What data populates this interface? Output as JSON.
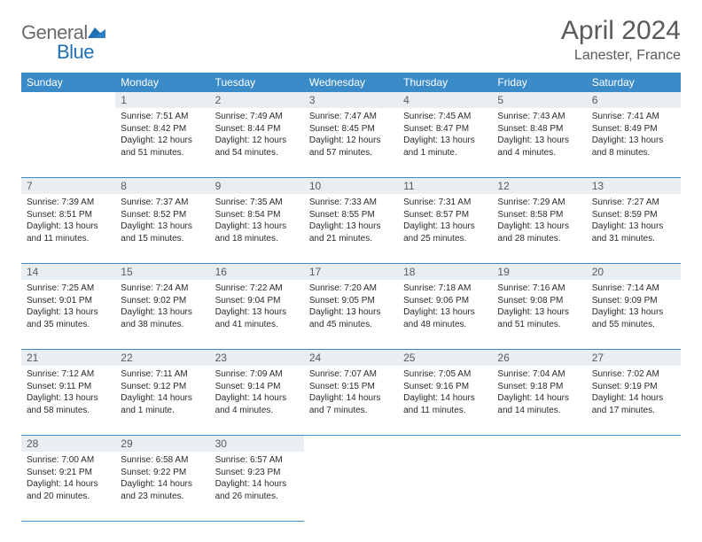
{
  "brand": {
    "general": "General",
    "blue": "Blue"
  },
  "title": "April 2024",
  "location": "Lanester, France",
  "colors": {
    "header_bg": "#3b8bc9",
    "header_fg": "#ffffff",
    "daynum_bg": "#e8eef2",
    "text": "#2b2b2b",
    "muted": "#5a5a5a",
    "rule": "#3b8bc9"
  },
  "weekdays": [
    "Sunday",
    "Monday",
    "Tuesday",
    "Wednesday",
    "Thursday",
    "Friday",
    "Saturday"
  ],
  "weeks": [
    [
      null,
      {
        "n": "1",
        "sunrise": "Sunrise: 7:51 AM",
        "sunset": "Sunset: 8:42 PM",
        "day1": "Daylight: 12 hours",
        "day2": "and 51 minutes."
      },
      {
        "n": "2",
        "sunrise": "Sunrise: 7:49 AM",
        "sunset": "Sunset: 8:44 PM",
        "day1": "Daylight: 12 hours",
        "day2": "and 54 minutes."
      },
      {
        "n": "3",
        "sunrise": "Sunrise: 7:47 AM",
        "sunset": "Sunset: 8:45 PM",
        "day1": "Daylight: 12 hours",
        "day2": "and 57 minutes."
      },
      {
        "n": "4",
        "sunrise": "Sunrise: 7:45 AM",
        "sunset": "Sunset: 8:47 PM",
        "day1": "Daylight: 13 hours",
        "day2": "and 1 minute."
      },
      {
        "n": "5",
        "sunrise": "Sunrise: 7:43 AM",
        "sunset": "Sunset: 8:48 PM",
        "day1": "Daylight: 13 hours",
        "day2": "and 4 minutes."
      },
      {
        "n": "6",
        "sunrise": "Sunrise: 7:41 AM",
        "sunset": "Sunset: 8:49 PM",
        "day1": "Daylight: 13 hours",
        "day2": "and 8 minutes."
      }
    ],
    [
      {
        "n": "7",
        "sunrise": "Sunrise: 7:39 AM",
        "sunset": "Sunset: 8:51 PM",
        "day1": "Daylight: 13 hours",
        "day2": "and 11 minutes."
      },
      {
        "n": "8",
        "sunrise": "Sunrise: 7:37 AM",
        "sunset": "Sunset: 8:52 PM",
        "day1": "Daylight: 13 hours",
        "day2": "and 15 minutes."
      },
      {
        "n": "9",
        "sunrise": "Sunrise: 7:35 AM",
        "sunset": "Sunset: 8:54 PM",
        "day1": "Daylight: 13 hours",
        "day2": "and 18 minutes."
      },
      {
        "n": "10",
        "sunrise": "Sunrise: 7:33 AM",
        "sunset": "Sunset: 8:55 PM",
        "day1": "Daylight: 13 hours",
        "day2": "and 21 minutes."
      },
      {
        "n": "11",
        "sunrise": "Sunrise: 7:31 AM",
        "sunset": "Sunset: 8:57 PM",
        "day1": "Daylight: 13 hours",
        "day2": "and 25 minutes."
      },
      {
        "n": "12",
        "sunrise": "Sunrise: 7:29 AM",
        "sunset": "Sunset: 8:58 PM",
        "day1": "Daylight: 13 hours",
        "day2": "and 28 minutes."
      },
      {
        "n": "13",
        "sunrise": "Sunrise: 7:27 AM",
        "sunset": "Sunset: 8:59 PM",
        "day1": "Daylight: 13 hours",
        "day2": "and 31 minutes."
      }
    ],
    [
      {
        "n": "14",
        "sunrise": "Sunrise: 7:25 AM",
        "sunset": "Sunset: 9:01 PM",
        "day1": "Daylight: 13 hours",
        "day2": "and 35 minutes."
      },
      {
        "n": "15",
        "sunrise": "Sunrise: 7:24 AM",
        "sunset": "Sunset: 9:02 PM",
        "day1": "Daylight: 13 hours",
        "day2": "and 38 minutes."
      },
      {
        "n": "16",
        "sunrise": "Sunrise: 7:22 AM",
        "sunset": "Sunset: 9:04 PM",
        "day1": "Daylight: 13 hours",
        "day2": "and 41 minutes."
      },
      {
        "n": "17",
        "sunrise": "Sunrise: 7:20 AM",
        "sunset": "Sunset: 9:05 PM",
        "day1": "Daylight: 13 hours",
        "day2": "and 45 minutes."
      },
      {
        "n": "18",
        "sunrise": "Sunrise: 7:18 AM",
        "sunset": "Sunset: 9:06 PM",
        "day1": "Daylight: 13 hours",
        "day2": "and 48 minutes."
      },
      {
        "n": "19",
        "sunrise": "Sunrise: 7:16 AM",
        "sunset": "Sunset: 9:08 PM",
        "day1": "Daylight: 13 hours",
        "day2": "and 51 minutes."
      },
      {
        "n": "20",
        "sunrise": "Sunrise: 7:14 AM",
        "sunset": "Sunset: 9:09 PM",
        "day1": "Daylight: 13 hours",
        "day2": "and 55 minutes."
      }
    ],
    [
      {
        "n": "21",
        "sunrise": "Sunrise: 7:12 AM",
        "sunset": "Sunset: 9:11 PM",
        "day1": "Daylight: 13 hours",
        "day2": "and 58 minutes."
      },
      {
        "n": "22",
        "sunrise": "Sunrise: 7:11 AM",
        "sunset": "Sunset: 9:12 PM",
        "day1": "Daylight: 14 hours",
        "day2": "and 1 minute."
      },
      {
        "n": "23",
        "sunrise": "Sunrise: 7:09 AM",
        "sunset": "Sunset: 9:14 PM",
        "day1": "Daylight: 14 hours",
        "day2": "and 4 minutes."
      },
      {
        "n": "24",
        "sunrise": "Sunrise: 7:07 AM",
        "sunset": "Sunset: 9:15 PM",
        "day1": "Daylight: 14 hours",
        "day2": "and 7 minutes."
      },
      {
        "n": "25",
        "sunrise": "Sunrise: 7:05 AM",
        "sunset": "Sunset: 9:16 PM",
        "day1": "Daylight: 14 hours",
        "day2": "and 11 minutes."
      },
      {
        "n": "26",
        "sunrise": "Sunrise: 7:04 AM",
        "sunset": "Sunset: 9:18 PM",
        "day1": "Daylight: 14 hours",
        "day2": "and 14 minutes."
      },
      {
        "n": "27",
        "sunrise": "Sunrise: 7:02 AM",
        "sunset": "Sunset: 9:19 PM",
        "day1": "Daylight: 14 hours",
        "day2": "and 17 minutes."
      }
    ],
    [
      {
        "n": "28",
        "sunrise": "Sunrise: 7:00 AM",
        "sunset": "Sunset: 9:21 PM",
        "day1": "Daylight: 14 hours",
        "day2": "and 20 minutes."
      },
      {
        "n": "29",
        "sunrise": "Sunrise: 6:58 AM",
        "sunset": "Sunset: 9:22 PM",
        "day1": "Daylight: 14 hours",
        "day2": "and 23 minutes."
      },
      {
        "n": "30",
        "sunrise": "Sunrise: 6:57 AM",
        "sunset": "Sunset: 9:23 PM",
        "day1": "Daylight: 14 hours",
        "day2": "and 26 minutes."
      },
      null,
      null,
      null,
      null
    ]
  ]
}
